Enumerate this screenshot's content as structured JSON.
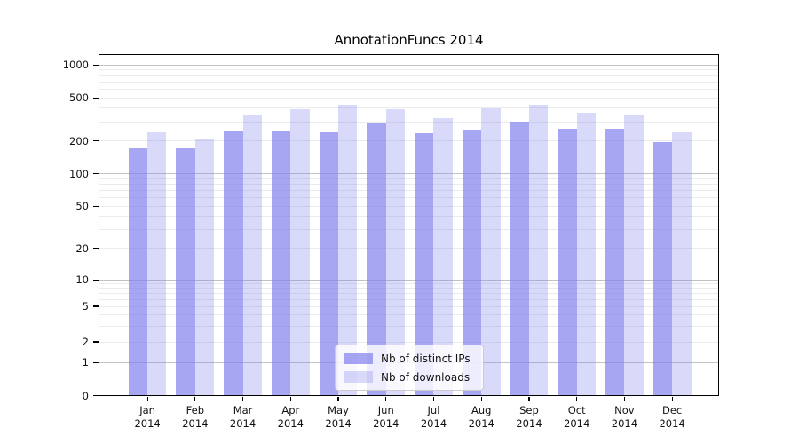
{
  "chart_data": {
    "type": "bar",
    "title": "AnnotationFuncs 2014",
    "categories": [
      "Jan",
      "Feb",
      "Mar",
      "Apr",
      "May",
      "Jun",
      "Jul",
      "Aug",
      "Sep",
      "Oct",
      "Nov",
      "Dec"
    ],
    "year_label": "2014",
    "series": [
      {
        "name": "Nb of distinct IPs",
        "values": [
          173,
          173,
          245,
          249,
          243,
          292,
          238,
          255,
          303,
          262,
          259,
          196
        ]
      },
      {
        "name": "Nb of downloads",
        "values": [
          240,
          212,
          347,
          391,
          435,
          390,
          324,
          397,
          430,
          361,
          350,
          243
        ]
      }
    ],
    "y_ticks": [
      0,
      1,
      2,
      5,
      10,
      20,
      50,
      100,
      200,
      500,
      1000
    ],
    "y_scale": "log (symlog-like, linear below 1)",
    "ylim": [
      0,
      1240
    ],
    "grid": true,
    "legend_position": "bottom-center",
    "colors": {
      "bar_base": "#8080ec",
      "bar_dark_alpha": 0.7,
      "bar_light_alpha": 0.3,
      "grid_major": "#c3c3c3",
      "grid_minor": "#ebebeb",
      "spine": "#000000",
      "legend_border": "#cccccc"
    }
  }
}
